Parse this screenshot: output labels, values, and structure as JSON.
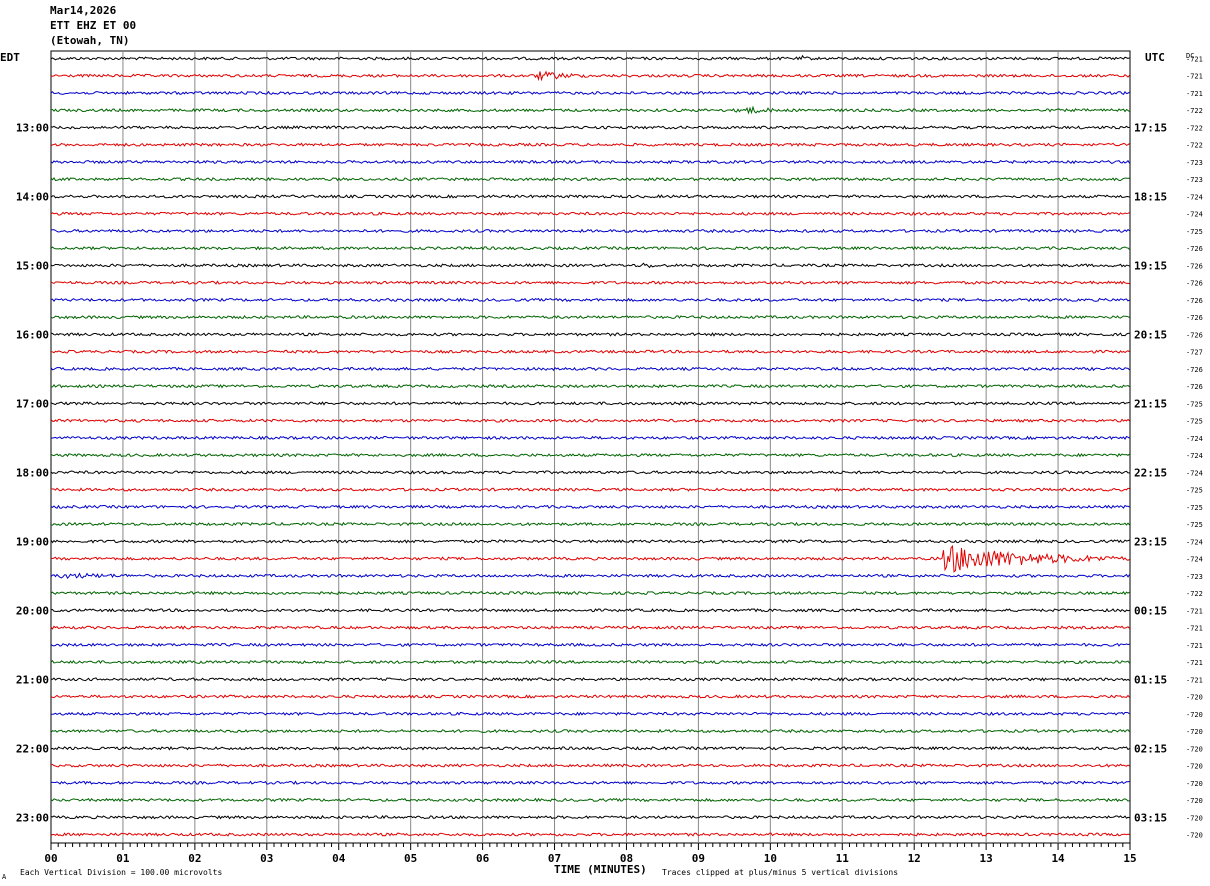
{
  "header": {
    "date": "Mar14,2026",
    "station": "ETT EHZ ET 00",
    "location": "(Etowah, TN)"
  },
  "labels": {
    "left_timezone": "EDT",
    "right_timezone": "UTC",
    "dc_header": "DC",
    "xlabel": "TIME (MINUTES)",
    "footer_left": "Each Vertical Division =  100.00 microvolts",
    "footer_right": "Traces clipped at plus/minus 5 vertical divisions",
    "footer_mark": "A"
  },
  "chart_data": {
    "type": "line",
    "title": "ETT EHZ ET 00",
    "xlabel": "TIME (MINUTES)",
    "xlim": [
      0,
      15
    ],
    "x_ticks": [
      "00",
      "01",
      "02",
      "03",
      "04",
      "05",
      "06",
      "07",
      "08",
      "09",
      "10",
      "11",
      "12",
      "13",
      "14",
      "15"
    ],
    "rows_per_hour": 4,
    "trace_colors": [
      "#000000",
      "#e00000",
      "#0000c8",
      "#006400"
    ],
    "left_hour_labels": [
      "13:00",
      "14:00",
      "15:00",
      "16:00",
      "17:00",
      "18:00",
      "19:00",
      "20:00",
      "21:00",
      "22:00",
      "23:00"
    ],
    "right_hour_labels": [
      "17:15",
      "18:15",
      "19:15",
      "20:15",
      "21:15",
      "22:15",
      "23:15",
      "00:15",
      "01:15",
      "02:15",
      "03:15"
    ],
    "dc_offsets": [
      -721,
      -721,
      -721,
      -722,
      -722,
      -722,
      -723,
      -723,
      -724,
      -724,
      -725,
      -726,
      -726,
      -726,
      -726,
      -726,
      -726,
      -727,
      -726,
      -726,
      -725,
      -725,
      -724,
      -724,
      -724,
      -725,
      -725,
      -725,
      -724,
      -724,
      -723,
      -722,
      -721,
      -721,
      -721,
      -721,
      -721,
      -720,
      -720,
      -720,
      -720,
      -720,
      -720,
      -720,
      -720,
      -720
    ],
    "events": [
      {
        "row": 0,
        "start_min": 10.4,
        "end_min": 10.7,
        "amplitude": 1.2
      },
      {
        "row": 1,
        "start_min": 6.7,
        "end_min": 8.0,
        "amplitude": 1.6
      },
      {
        "row": 3,
        "start_min": 9.5,
        "end_min": 10.6,
        "amplitude": 1.6
      },
      {
        "row": 12,
        "start_min": 8.2,
        "end_min": 8.8,
        "amplitude": 1.1
      },
      {
        "row": 29,
        "start_min": 12.3,
        "end_min": 15.0,
        "amplitude": 5.0
      },
      {
        "row": 30,
        "start_min": 0.0,
        "end_min": 3.0,
        "amplitude": 1.0
      }
    ]
  }
}
